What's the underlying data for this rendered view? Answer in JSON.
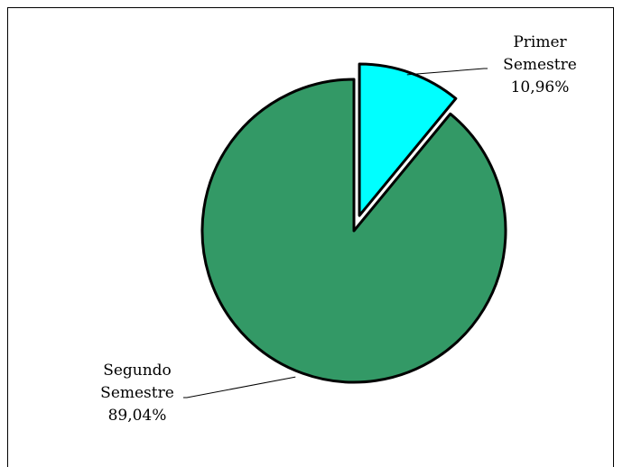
{
  "chart_data": {
    "type": "pie",
    "title": "",
    "slices": [
      {
        "name": "Primer Semestre",
        "value": 10.96,
        "label_lines": [
          "Primer",
          "Semestre",
          "10,96%"
        ],
        "color": "#00ffff",
        "exploded": true
      },
      {
        "name": "Segundo Semestre",
        "value": 89.04,
        "label_lines": [
          "Segundo",
          "Semestre",
          "89,04%"
        ],
        "color": "#339966",
        "exploded": false
      }
    ],
    "start_angle_deg": 0,
    "direction": "clockwise",
    "legend": "none"
  }
}
